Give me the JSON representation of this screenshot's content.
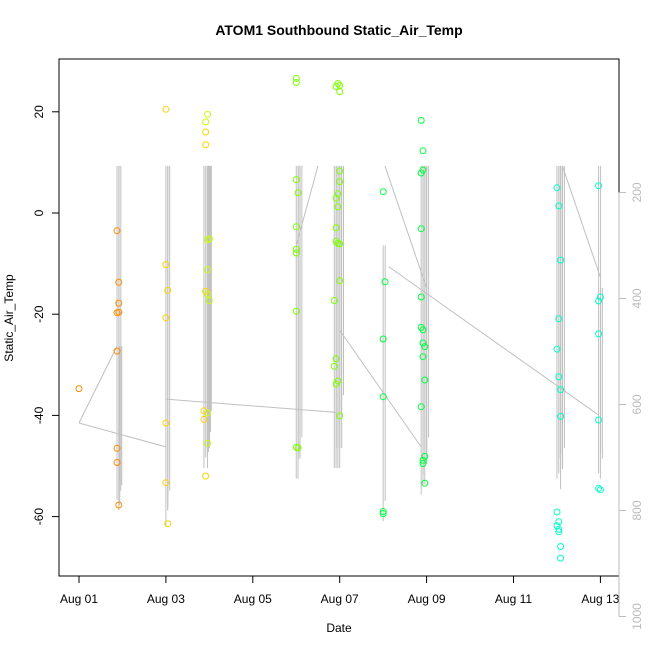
{
  "chart_data": {
    "type": "scatter",
    "title": "ATOM1 Southbound Static_Air_Temp",
    "xlabel": "Date",
    "ylabel": "Static_Air_Temp",
    "x_ticks": [
      "Aug 01",
      "Aug 03",
      "Aug 05",
      "Aug 07",
      "Aug 09",
      "Aug 11",
      "Aug 13"
    ],
    "y_ticks": [
      -60,
      -40,
      -20,
      0,
      20
    ],
    "y2_ticks": [
      200,
      400,
      600,
      800,
      1000
    ],
    "xlim": [
      "2016-08-01",
      "2016-08-13"
    ],
    "ylim": [
      -72,
      30
    ],
    "y2lim": [
      1030,
      150
    ],
    "y2_axis": "pressure (inverted), light gray",
    "grid": false,
    "series_colors": [
      "#ff8c00",
      "#ffd200",
      "#c8ff00",
      "#7fff00",
      "#00ff40",
      "#00ffc8"
    ],
    "flight_days": [
      {
        "date": "2016-08-01",
        "color": "#ff8c00",
        "points": [
          [
            "2016-08-01 00:00",
            -34.7
          ],
          [
            "2016-08-01 21:00",
            -3.5
          ],
          [
            "2016-08-01 21:00",
            -19.7
          ],
          [
            "2016-08-01 21:00",
            -27.3
          ],
          [
            "2016-08-01 21:00",
            -46.5
          ],
          [
            "2016-08-01 21:00",
            -49.3
          ],
          [
            "2016-08-01 22:00",
            -17.8
          ],
          [
            "2016-08-01 22:00",
            -13.7
          ],
          [
            "2016-08-01 22:00",
            -19.6
          ],
          [
            "2016-08-01 22:00",
            -57.7
          ]
        ]
      },
      {
        "date": "2016-08-03",
        "color": "#ffd200",
        "points": [
          [
            "2016-08-03 00:00",
            20.5
          ],
          [
            "2016-08-03 00:00",
            -10.2
          ],
          [
            "2016-08-03 00:00",
            -20.7
          ],
          [
            "2016-08-03 00:00",
            -41.5
          ],
          [
            "2016-08-03 00:00",
            -53.3
          ],
          [
            "2016-08-03 01:00",
            -15.3
          ],
          [
            "2016-08-03 01:00",
            -61.4
          ],
          [
            "2016-08-03 21:00",
            -39.1
          ],
          [
            "2016-08-03 21:00",
            -40.8
          ],
          [
            "2016-08-03 22:00",
            13.5
          ],
          [
            "2016-08-03 22:00",
            16.0
          ],
          [
            "2016-08-03 22:00",
            -15.5
          ],
          [
            "2016-08-03 22:00",
            -52.0
          ]
        ]
      },
      {
        "date": "2016-08-04",
        "color": "#c8ff00",
        "points": [
          [
            "2016-08-03 22:00",
            18.0
          ],
          [
            "2016-08-03 23:00",
            19.5
          ],
          [
            "2016-08-03 23:00",
            -5.3
          ],
          [
            "2016-08-03 23:00",
            -11.2
          ],
          [
            "2016-08-03 23:00",
            -16.0
          ],
          [
            "2016-08-03 23:00",
            -39.5
          ],
          [
            "2016-08-03 23:00",
            -45.5
          ],
          [
            "2016-08-04 00:00",
            -17.3
          ],
          [
            "2016-08-04 00:00",
            -5.1
          ]
        ]
      },
      {
        "date": "2016-08-06",
        "color": "#7fff00",
        "points": [
          [
            "2016-08-06 00:00",
            26.6
          ],
          [
            "2016-08-06 00:00",
            25.8
          ],
          [
            "2016-08-06 00:00",
            6.6
          ],
          [
            "2016-08-06 00:00",
            -2.7
          ],
          [
            "2016-08-06 00:00",
            -7.2
          ],
          [
            "2016-08-06 00:00",
            -7.9
          ],
          [
            "2016-08-06 00:00",
            -19.4
          ],
          [
            "2016-08-06 00:00",
            -46.3
          ],
          [
            "2016-08-06 01:00",
            4.0
          ],
          [
            "2016-08-06 01:00",
            -46.4
          ],
          [
            "2016-08-06 21:00",
            -17.3
          ],
          [
            "2016-08-06 21:00",
            -30.3
          ],
          [
            "2016-08-06 22:00",
            25.0
          ],
          [
            "2016-08-06 22:00",
            2.9
          ],
          [
            "2016-08-06 22:00",
            -2.9
          ],
          [
            "2016-08-06 22:00",
            -5.6
          ],
          [
            "2016-08-06 22:00",
            -28.8
          ],
          [
            "2016-08-06 22:00",
            -33.8
          ],
          [
            "2016-08-06 23:00",
            25.6
          ],
          [
            "2016-08-06 23:00",
            3.8
          ],
          [
            "2016-08-06 23:00",
            1.2
          ],
          [
            "2016-08-06 23:00",
            -6.0
          ],
          [
            "2016-08-06 23:00",
            -33.2
          ],
          [
            "2016-08-07 00:00",
            25.2
          ],
          [
            "2016-08-07 00:00",
            24.0
          ],
          [
            "2016-08-07 00:00",
            8.3
          ],
          [
            "2016-08-07 00:00",
            6.2
          ],
          [
            "2016-08-07 00:00",
            -6.1
          ],
          [
            "2016-08-07 00:00",
            -13.4
          ],
          [
            "2016-08-07 00:00",
            -40.1
          ]
        ]
      },
      {
        "date": "2016-08-08",
        "color": "#00ff40",
        "points": [
          [
            "2016-08-08 00:00",
            4.2
          ],
          [
            "2016-08-08 00:00",
            -24.9
          ],
          [
            "2016-08-08 00:00",
            -36.3
          ],
          [
            "2016-08-08 00:00",
            -59.0
          ],
          [
            "2016-08-08 00:00",
            -59.4
          ],
          [
            "2016-08-08 01:00",
            -13.6
          ],
          [
            "2016-08-08 21:00",
            18.3
          ],
          [
            "2016-08-08 21:00",
            7.9
          ],
          [
            "2016-08-08 21:00",
            -3.1
          ],
          [
            "2016-08-08 21:00",
            -16.6
          ],
          [
            "2016-08-08 21:00",
            -22.6
          ],
          [
            "2016-08-08 21:00",
            -38.3
          ],
          [
            "2016-08-08 22:00",
            12.3
          ],
          [
            "2016-08-08 22:00",
            8.5
          ],
          [
            "2016-08-08 22:00",
            -23.1
          ],
          [
            "2016-08-08 22:00",
            -25.7
          ],
          [
            "2016-08-08 22:00",
            -28.4
          ],
          [
            "2016-08-08 22:00",
            -48.9
          ],
          [
            "2016-08-08 22:00",
            -49.5
          ],
          [
            "2016-08-08 23:00",
            -26.4
          ],
          [
            "2016-08-08 23:00",
            -33.0
          ],
          [
            "2016-08-08 23:00",
            -48.1
          ],
          [
            "2016-08-08 23:00",
            -53.4
          ]
        ]
      },
      {
        "date": "2016-08-12",
        "color": "#00ffc8",
        "points": [
          [
            "2016-08-12 00:00",
            5.0
          ],
          [
            "2016-08-12 00:00",
            -26.9
          ],
          [
            "2016-08-12 00:00",
            -59.1
          ],
          [
            "2016-08-12 00:00",
            -61.8
          ],
          [
            "2016-08-12 01:00",
            1.4
          ],
          [
            "2016-08-12 01:00",
            -20.9
          ],
          [
            "2016-08-12 01:00",
            -32.4
          ],
          [
            "2016-08-12 01:00",
            -61.0
          ],
          [
            "2016-08-12 01:00",
            -62.5
          ],
          [
            "2016-08-12 01:00",
            -63.0
          ],
          [
            "2016-08-12 02:00",
            -9.3
          ],
          [
            "2016-08-12 02:00",
            -34.9
          ],
          [
            "2016-08-12 02:00",
            -40.2
          ],
          [
            "2016-08-12 02:00",
            -65.9
          ],
          [
            "2016-08-12 02:00",
            -68.2
          ],
          [
            "2016-08-12 23:00",
            5.4
          ],
          [
            "2016-08-12 23:00",
            -17.4
          ],
          [
            "2016-08-12 23:00",
            -23.9
          ],
          [
            "2016-08-12 23:00",
            -40.9
          ],
          [
            "2016-08-12 23:00",
            -54.4
          ],
          [
            "2016-08-13 00:00",
            -16.6
          ],
          [
            "2016-08-13 00:00",
            -54.7
          ]
        ]
      }
    ],
    "pressure_trace": {
      "color": "#c0c0c0",
      "vertical_segments": [
        [
          "2016-08-01 21:00",
          780,
          150
        ],
        [
          "2016-08-01 22:00",
          800,
          150
        ],
        [
          "2016-08-01 22:30",
          790,
          490
        ],
        [
          "2016-08-03 00:00",
          830,
          150
        ],
        [
          "2016-08-03 01:00",
          800,
          150
        ],
        [
          "2016-08-03 21:00",
          720,
          150
        ],
        [
          "2016-08-03 22:00",
          700,
          150
        ],
        [
          "2016-08-03 23:00",
          720,
          150
        ],
        [
          "2016-08-03 23:30",
          690,
          150
        ],
        [
          "2016-08-04 00:00",
          650,
          150
        ],
        [
          "2016-08-06 00:00",
          740,
          150
        ],
        [
          "2016-08-06 01:00",
          740,
          150
        ],
        [
          "2016-08-06 02:00",
          700,
          150
        ],
        [
          "2016-08-06 21:00",
          720,
          150
        ],
        [
          "2016-08-06 22:00",
          720,
          150
        ],
        [
          "2016-08-06 23:00",
          720,
          150
        ],
        [
          "2016-08-07 00:00",
          720,
          150
        ],
        [
          "2016-08-07 01:00",
          620,
          150
        ],
        [
          "2016-08-08 00:00",
          820,
          300
        ],
        [
          "2016-08-08 21:00",
          770,
          150
        ],
        [
          "2016-08-08 22:00",
          750,
          150
        ],
        [
          "2016-08-08 23:00",
          750,
          150
        ],
        [
          "2016-08-09 00:00",
          700,
          150
        ],
        [
          "2016-08-12 00:00",
          740,
          150
        ],
        [
          "2016-08-12 01:00",
          730,
          150
        ],
        [
          "2016-08-12 02:00",
          760,
          150
        ],
        [
          "2016-08-12 03:00",
          720,
          150
        ],
        [
          "2016-08-12 23:00",
          730,
          150
        ],
        [
          "2016-08-13 00:00",
          740,
          380
        ]
      ],
      "connectors": [
        [
          [
            "2016-08-01 00:00",
            635
          ],
          [
            "2016-08-03 00:00",
            680
          ]
        ],
        [
          [
            "2016-08-01 00:00",
            635
          ],
          [
            "2016-08-01 21:00",
            490
          ]
        ],
        [
          [
            "2016-08-03 00:00",
            590
          ],
          [
            "2016-08-06 22:00",
            615
          ]
        ],
        [
          [
            "2016-08-06 00:00",
            300
          ],
          [
            "2016-08-06 12:00",
            150
          ]
        ],
        [
          [
            "2016-08-07 00:00",
            460
          ],
          [
            "2016-08-08 21:00",
            680
          ]
        ],
        [
          [
            "2016-08-08 01:00",
            150
          ],
          [
            "2016-08-09 00:00",
            380
          ]
        ],
        [
          [
            "2016-08-08 03:00",
            340
          ],
          [
            "2016-08-12 23:00",
            620
          ]
        ],
        [
          [
            "2016-08-12 03:00",
            150
          ],
          [
            "2016-08-13 00:00",
            360
          ]
        ]
      ]
    }
  }
}
